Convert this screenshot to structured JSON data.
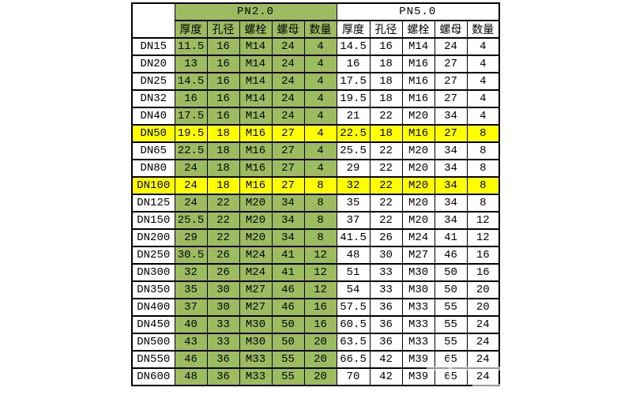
{
  "colors": {
    "green": "#9cbc5f",
    "yellow": "#ffff00",
    "white": "#ffffff",
    "border": "#000000"
  },
  "chart_data": {
    "type": "table",
    "corner_label": "",
    "groups": [
      {
        "label": "PN2.0",
        "columns": [
          "厚度",
          "孔径",
          "螺栓",
          "螺母",
          "数量"
        ]
      },
      {
        "label": "PN5.0",
        "columns": [
          "厚度",
          "孔径",
          "螺栓",
          "螺母",
          "数量"
        ]
      }
    ],
    "rows": [
      {
        "label": "DN15",
        "highlight": false,
        "values": [
          "11.5",
          "16",
          "M14",
          "24",
          "4",
          "14.5",
          "16",
          "M14",
          "24",
          "4"
        ]
      },
      {
        "label": "DN20",
        "highlight": false,
        "values": [
          "13",
          "16",
          "M14",
          "24",
          "4",
          "16",
          "18",
          "M16",
          "27",
          "4"
        ]
      },
      {
        "label": "DN25",
        "highlight": false,
        "values": [
          "14.5",
          "16",
          "M14",
          "24",
          "4",
          "17.5",
          "18",
          "M16",
          "27",
          "4"
        ]
      },
      {
        "label": "DN32",
        "highlight": false,
        "values": [
          "16",
          "16",
          "M14",
          "24",
          "4",
          "19.5",
          "18",
          "M16",
          "27",
          "4"
        ]
      },
      {
        "label": "DN40",
        "highlight": false,
        "values": [
          "17.5",
          "16",
          "M14",
          "24",
          "4",
          "21",
          "22",
          "M20",
          "34",
          "4"
        ]
      },
      {
        "label": "DN50",
        "highlight": true,
        "values": [
          "19.5",
          "18",
          "M16",
          "27",
          "4",
          "22.5",
          "18",
          "M16",
          "27",
          "8"
        ]
      },
      {
        "label": "DN65",
        "highlight": false,
        "values": [
          "22.5",
          "18",
          "M16",
          "27",
          "4",
          "25.5",
          "22",
          "M20",
          "34",
          "8"
        ]
      },
      {
        "label": "DN80",
        "highlight": false,
        "values": [
          "24",
          "18",
          "M16",
          "27",
          "4",
          "29",
          "22",
          "M20",
          "34",
          "8"
        ]
      },
      {
        "label": "DN100",
        "highlight": true,
        "values": [
          "24",
          "18",
          "M16",
          "27",
          "8",
          "32",
          "22",
          "M20",
          "34",
          "8"
        ]
      },
      {
        "label": "DN125",
        "highlight": false,
        "values": [
          "24",
          "22",
          "M20",
          "34",
          "8",
          "35",
          "22",
          "M20",
          "34",
          "8"
        ]
      },
      {
        "label": "DN150",
        "highlight": false,
        "values": [
          "25.5",
          "22",
          "M20",
          "34",
          "8",
          "37",
          "22",
          "M20",
          "34",
          "12"
        ]
      },
      {
        "label": "DN200",
        "highlight": false,
        "values": [
          "29",
          "22",
          "M20",
          "34",
          "8",
          "41.5",
          "26",
          "M24",
          "41",
          "12"
        ]
      },
      {
        "label": "DN250",
        "highlight": false,
        "values": [
          "30.5",
          "26",
          "M24",
          "41",
          "12",
          "48",
          "30",
          "M27",
          "46",
          "16"
        ]
      },
      {
        "label": "DN300",
        "highlight": false,
        "values": [
          "32",
          "26",
          "M24",
          "41",
          "12",
          "51",
          "33",
          "M30",
          "50",
          "16"
        ]
      },
      {
        "label": "DN350",
        "highlight": false,
        "values": [
          "35",
          "30",
          "M27",
          "46",
          "12",
          "54",
          "33",
          "M30",
          "50",
          "20"
        ]
      },
      {
        "label": "DN400",
        "highlight": false,
        "values": [
          "37",
          "30",
          "M27",
          "46",
          "16",
          "57.5",
          "36",
          "M33",
          "55",
          "20"
        ]
      },
      {
        "label": "DN450",
        "highlight": false,
        "values": [
          "40",
          "33",
          "M30",
          "50",
          "16",
          "60.5",
          "36",
          "M33",
          "55",
          "24"
        ]
      },
      {
        "label": "DN500",
        "highlight": false,
        "values": [
          "43",
          "33",
          "M30",
          "50",
          "20",
          "63.5",
          "36",
          "M33",
          "55",
          "24"
        ]
      },
      {
        "label": "DN550",
        "highlight": false,
        "values": [
          "46",
          "36",
          "M33",
          "55",
          "20",
          "66.5",
          "42",
          "M39",
          "65",
          "24"
        ]
      },
      {
        "label": "DN600",
        "highlight": false,
        "values": [
          "48",
          "36",
          "M33",
          "55",
          "20",
          "70",
          "42",
          "M39",
          "65",
          "24"
        ]
      }
    ]
  }
}
